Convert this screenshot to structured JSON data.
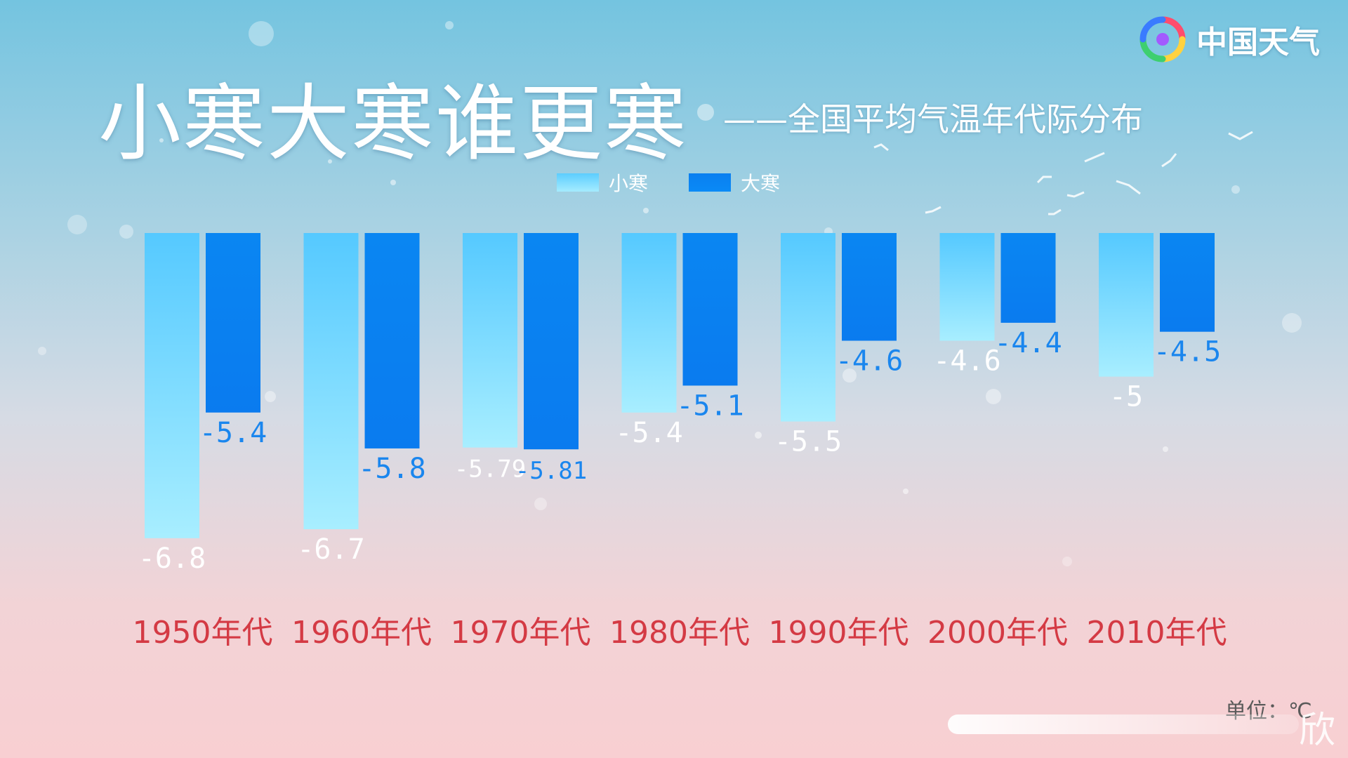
{
  "brand": {
    "name": "中国天气",
    "icon": "swirl-logo-icon"
  },
  "chart_data": {
    "type": "bar",
    "title": "小寒大寒谁更寒",
    "subtitle": "——全国平均气温年代际分布",
    "categories": [
      "1950年代",
      "1960年代",
      "1970年代",
      "1980年代",
      "1990年代",
      "2000年代",
      "2010年代"
    ],
    "series": [
      {
        "name": "小寒",
        "values": [
          -6.8,
          -6.7,
          -5.79,
          -5.4,
          -5.5,
          -4.6,
          -5
        ],
        "labels": [
          "-6.8",
          "-6.7",
          "-5.79",
          "-5.4",
          "-5.5",
          "-4.6",
          "-5"
        ],
        "color": "#5ccdff"
      },
      {
        "name": "大寒",
        "values": [
          -5.4,
          -5.8,
          -5.81,
          -5.1,
          -4.6,
          -4.4,
          -4.5
        ],
        "labels": [
          "-5.4",
          "-5.8",
          "-5.81",
          "-5.1",
          "-4.6",
          "-4.4",
          "-4.5"
        ],
        "color": "#0a7ff0"
      }
    ],
    "ylim": [
      -6.95,
      -3.4
    ],
    "grid": false,
    "legend_position": "top-center",
    "unit": "单位：℃",
    "category_label_color": "#d43a44"
  },
  "watermark": {
    "char": "欣"
  }
}
